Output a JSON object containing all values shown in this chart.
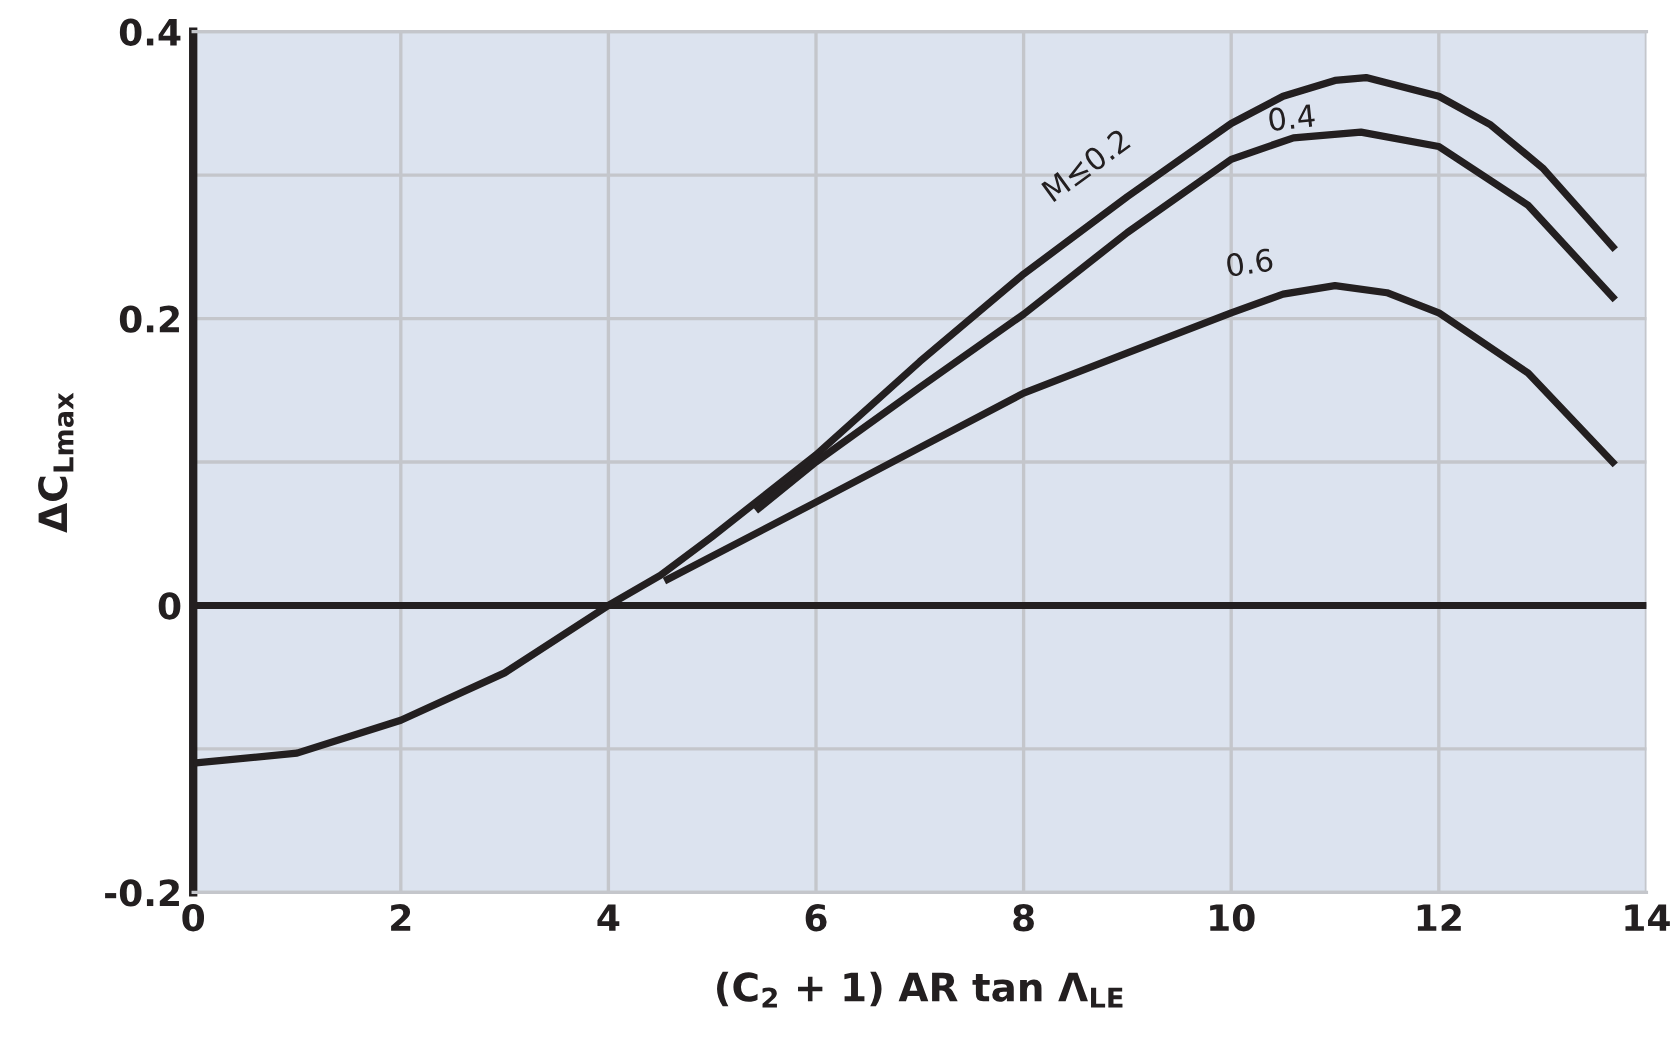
{
  "chart_data": {
    "type": "line",
    "xlabel": "(C$_{2}$ + 1) AR tan Λ$_{LE}$",
    "ylabel": "ΔC$_{Lmax}$",
    "xlim": [
      0,
      14
    ],
    "xticks": [
      0,
      2,
      4,
      6,
      8,
      10,
      12,
      14
    ],
    "ylim": [
      -0.2,
      0.4
    ],
    "yticks": [
      -0.2,
      {
        "value": -0.1,
        "label": null
      },
      0,
      {
        "value": 0.1,
        "label": null
      },
      0.2,
      {
        "value": 0.3,
        "label": null
      },
      0.4
    ],
    "grid": true,
    "marker": "none",
    "line_style": "solid",
    "ref_lines": [
      {
        "axis": "y",
        "value": 0,
        "color": "#231f20"
      }
    ],
    "series": [
      {
        "name": "M≤0.2",
        "color": "#231f20",
        "x": [
          0,
          1,
          2,
          3,
          4,
          4.5,
          5,
          6,
          7,
          8,
          9,
          10,
          10.5,
          11,
          11.3,
          12,
          12.5,
          13,
          13.7
        ],
        "values": [
          -0.11,
          -0.103,
          -0.08,
          -0.047,
          0,
          0.021,
          0.048,
          0.105,
          0.17,
          0.231,
          0.285,
          0.336,
          0.355,
          0.366,
          0.368,
          0.355,
          0.335,
          0.305,
          0.248
        ]
      },
      {
        "name": "0.4",
        "color": "#231f20",
        "x": [
          5.42,
          6,
          7,
          8,
          9,
          10,
          10.6,
          11.25,
          12,
          12.86,
          13.7
        ],
        "values": [
          0.066,
          0.1,
          0.152,
          0.203,
          0.26,
          0.311,
          0.326,
          0.33,
          0.32,
          0.279,
          0.213
        ]
      },
      {
        "name": "0.6",
        "color": "#231f20",
        "x": [
          4.54,
          6,
          7,
          8,
          9,
          10,
          10.5,
          11,
          11.5,
          12,
          12.86,
          13.7
        ],
        "values": [
          0.017,
          0.072,
          0.11,
          0.148,
          0.176,
          0.204,
          0.217,
          0.223,
          0.218,
          0.204,
          0.162,
          0.098
        ]
      }
    ]
  }
}
